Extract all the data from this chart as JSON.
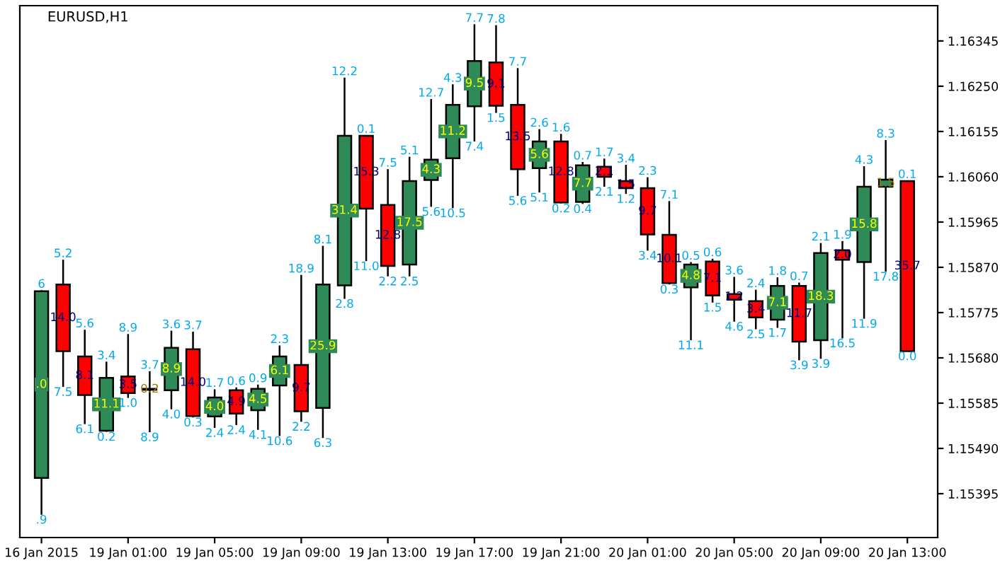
{
  "chart_data": {
    "type": "candlestick",
    "title": "EURUSD,H1",
    "categories": [
      "16 Jan 2015",
      null,
      null,
      null,
      "19 Jan 01:00",
      null,
      null,
      null,
      "19 Jan 05:00",
      null,
      null,
      null,
      "19 Jan 09:00",
      null,
      null,
      null,
      "19 Jan 13:00",
      null,
      null,
      null,
      "19 Jan 17:00",
      null,
      null,
      null,
      "19 Jan 21:00",
      null,
      null,
      null,
      "20 Jan 01:00",
      null,
      null,
      null,
      "20 Jan 05:00",
      null,
      null,
      null,
      "20 Jan 09:00",
      null,
      null,
      null,
      "20 Jan 13:00"
    ],
    "ohlc": [
      [
        1.15428,
        1.15822,
        1.15351,
        1.1582
      ],
      [
        1.15834,
        1.15886,
        1.15619,
        1.15694
      ],
      [
        1.15683,
        1.15739,
        1.15541,
        1.15602
      ],
      [
        1.15527,
        1.15672,
        1.15525,
        1.15638
      ],
      [
        1.15641,
        1.1573,
        1.15596,
        1.15606
      ],
      [
        1.15613,
        1.15652,
        1.15524,
        1.15615
      ],
      [
        1.15612,
        1.15737,
        1.15572,
        1.15701
      ],
      [
        1.15698,
        1.15735,
        1.15555,
        1.15558
      ],
      [
        1.15557,
        1.15614,
        1.15533,
        1.15597
      ],
      [
        1.15612,
        1.15618,
        1.15539,
        1.15563
      ],
      [
        1.1557,
        1.15624,
        1.15529,
        1.15615
      ],
      [
        1.15622,
        1.15706,
        1.15516,
        1.15683
      ],
      [
        1.15665,
        1.15854,
        1.15546,
        1.15568
      ],
      [
        1.15575,
        1.15915,
        1.15512,
        1.15834
      ],
      [
        1.15832,
        1.16268,
        1.15804,
        1.16146
      ],
      [
        1.16146,
        1.16147,
        1.15883,
        1.15993
      ],
      [
        1.16001,
        1.16076,
        1.15851,
        1.15873
      ],
      [
        1.15876,
        1.16102,
        1.15851,
        1.16051
      ],
      [
        1.16053,
        1.16223,
        1.15997,
        1.16096
      ],
      [
        1.16099,
        1.16254,
        1.15994,
        1.16211
      ],
      [
        1.16208,
        1.1638,
        1.16134,
        1.16303
      ],
      [
        1.163,
        1.16378,
        1.16194,
        1.16209
      ],
      [
        1.16211,
        1.16288,
        1.1602,
        1.16076
      ],
      [
        1.16078,
        1.1616,
        1.16027,
        1.16134
      ],
      [
        1.16134,
        1.1615,
        1.16004,
        1.16006
      ],
      [
        1.16007,
        1.16091,
        1.16003,
        1.16084
      ],
      [
        1.16081,
        1.16098,
        1.16039,
        1.1606
      ],
      [
        1.16051,
        1.16085,
        1.16024,
        1.16036
      ],
      [
        1.16036,
        1.16059,
        1.15905,
        1.15939
      ],
      [
        1.15938,
        1.16009,
        1.15834,
        1.15837
      ],
      [
        1.15828,
        1.15881,
        1.15717,
        1.15876
      ],
      [
        1.15882,
        1.15888,
        1.15796,
        1.15811
      ],
      [
        1.15814,
        1.1585,
        1.15756,
        1.15802
      ],
      [
        1.15799,
        1.15823,
        1.1574,
        1.15765
      ],
      [
        1.1576,
        1.15849,
        1.15743,
        1.15831
      ],
      [
        1.15831,
        1.15838,
        1.15675,
        1.15714
      ],
      [
        1.15717,
        1.15921,
        1.15678,
        1.159
      ],
      [
        1.15906,
        1.15925,
        1.15721,
        1.15886
      ],
      [
        1.15881,
        1.16082,
        1.15762,
        1.16039
      ],
      [
        1.16039,
        1.16137,
        1.15861,
        1.16054
      ],
      [
        1.16051,
        1.16052,
        1.15694,
        1.15694
      ]
    ],
    "colors": [
      "#2e8b57",
      "#ff0000",
      "#ff0000",
      "#2e8b57",
      "#ff0000",
      "#2e8b57",
      "#2e8b57",
      "#ff0000",
      "#2e8b57",
      "#ff0000",
      "#2e8b57",
      "#2e8b57",
      "#ff0000",
      "#2e8b57",
      "#2e8b57",
      "#ff0000",
      "#ff0000",
      "#2e8b57",
      "#2e8b57",
      "#2e8b57",
      "#2e8b57",
      "#ff0000",
      "#ff0000",
      "#2e8b57",
      "#ff0000",
      "#2e8b57",
      "#ff0000",
      "#ff0000",
      "#ff0000",
      "#ff0000",
      "#2e8b57",
      "#ff0000",
      "#ff0000",
      "#ff0000",
      "#2e8b57",
      "#ff0000",
      "#2e8b57",
      "#ff0000",
      "#2e8b57",
      "#2e8b57",
      "#ff0000"
    ],
    "ylim": [
      1.15303,
      1.16419
    ],
    "yticks": [
      1.15395,
      {
        "value": 1.1549,
        "label": "1.15490"
      },
      1.15585,
      {
        "value": 1.1568,
        "label": "1.15680"
      },
      1.15775,
      {
        "value": 1.1587,
        "label": "1.15870"
      },
      1.15965,
      {
        "value": 1.1606,
        "label": "1.16060"
      },
      1.16155,
      {
        "value": 1.1625,
        "label": "1.16250"
      },
      1.16345
    ],
    "grid": false,
    "legend": false,
    "annotations": [
      "6",
      ".0",
      ".9",
      "5.2",
      "14.0",
      "7.5",
      "5.6",
      "8.1",
      "6.1",
      "3.4",
      "11.1",
      "0.2",
      "8.9",
      "3.5",
      "1.0",
      "3.7",
      "0.2",
      "8.9",
      "3.6",
      "8.9",
      "4.0",
      "3.7",
      "14.0",
      "0.3",
      "1.7",
      "4.0",
      "2.4",
      "0.6",
      "4.9",
      "2.4",
      "0.9",
      "4.5",
      "4.1",
      "2.3",
      "6.1",
      "10.6",
      "18.9",
      "9.7",
      "2.2",
      "8.1",
      "25.9",
      "6.3",
      "12.2",
      "31.4",
      "2.8",
      "0.1",
      "15.3",
      "11.0",
      "7.5",
      "12.8",
      "2.2",
      "5.1",
      "17.5",
      "2.5",
      "12.7",
      "4.3",
      "5.6",
      "4.3",
      "11.2",
      "10.5",
      "7.7",
      "9.5",
      "7.4",
      "7.8",
      "9.1",
      "1.5",
      "7.7",
      "13.5",
      "5.6",
      "2.6",
      "5.6",
      "5.1",
      "1.6",
      "12.8",
      "0.2",
      "0.7",
      "7.7",
      "0.4",
      "1.7",
      "2.1",
      "2.1",
      "3.4",
      "1.5",
      "1.2",
      "2.3",
      "9.7",
      "3.4",
      "7.1",
      "10.1",
      "0.3",
      "0.5",
      "4.8",
      "11.1",
      "0.6",
      "7.1",
      "1.5",
      "3.6",
      "1.2",
      "4.6",
      "2.4",
      "3.4",
      "2.5",
      "1.8",
      "7.1",
      "1.7",
      "0.7",
      "11.7",
      "3.9",
      "2.1",
      "18.3",
      "3.9",
      "1.9",
      "2.0",
      "16.5",
      "4.3",
      "15.8",
      "11.9",
      "8.3",
      "1.5",
      "17.8",
      "0.1",
      "35.7",
      "0.0"
    ]
  }
}
